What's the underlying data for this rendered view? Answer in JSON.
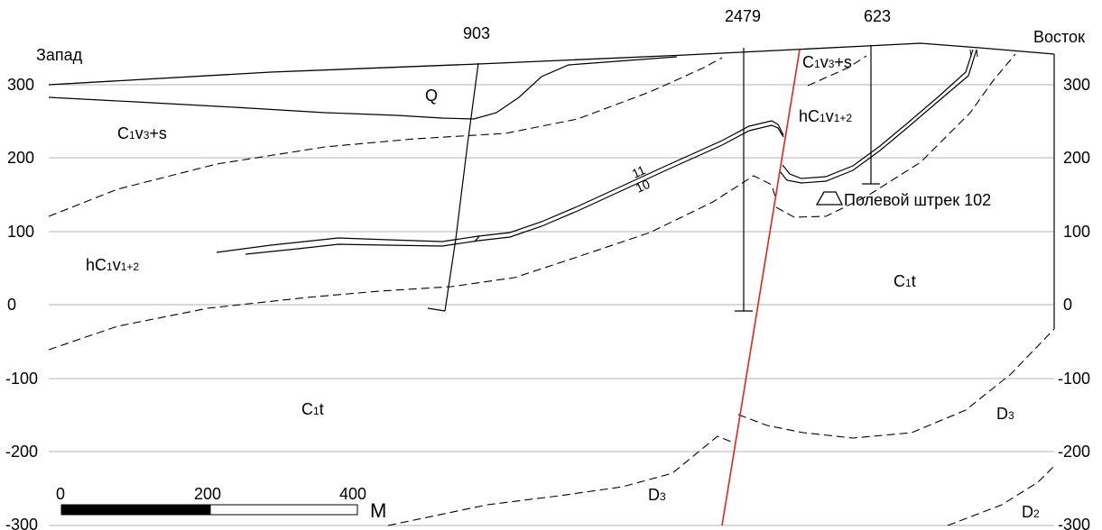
{
  "directions": {
    "west": "Запад",
    "east": "Восток"
  },
  "boreholes": [
    "903",
    "2479",
    "623"
  ],
  "elevation_ticks": [
    "300",
    "200",
    "100",
    "0",
    "-100",
    "-200",
    "-300"
  ],
  "units": {
    "q": "Q",
    "c1v3s_west": {
      "main": "C",
      "s1": "1",
      "mid": "v",
      "s2": "3",
      "tail": "+s"
    },
    "c1v3s_east": {
      "main": "C",
      "s1": "1",
      "mid": "v",
      "s2": "3",
      "tail": "+s"
    },
    "hc1v12_east": {
      "main": "hC",
      "s1": "1",
      "mid": "v",
      "s2": "1+2"
    },
    "hc1v12_west": {
      "main": "hC",
      "s1": "1",
      "mid": "v",
      "s2": "1+2"
    },
    "c1t_east": {
      "main": "C",
      "s1": "1",
      "tail": "t"
    },
    "c1t_west": {
      "main": "C",
      "s1": "1",
      "tail": "t"
    },
    "d3_east": {
      "main": "D",
      "s1": "3"
    },
    "d3_bottom": {
      "main": "D",
      "s1": "3"
    },
    "d2": {
      "main": "D",
      "s1": "2"
    }
  },
  "seams": [
    "11",
    "10"
  ],
  "drift_label": "Полевой штрек 102",
  "scale": {
    "ticks": [
      "0",
      "200",
      "400"
    ],
    "unit": "М"
  },
  "colors": {
    "fault": "#e8231c",
    "lines": "#000000"
  }
}
